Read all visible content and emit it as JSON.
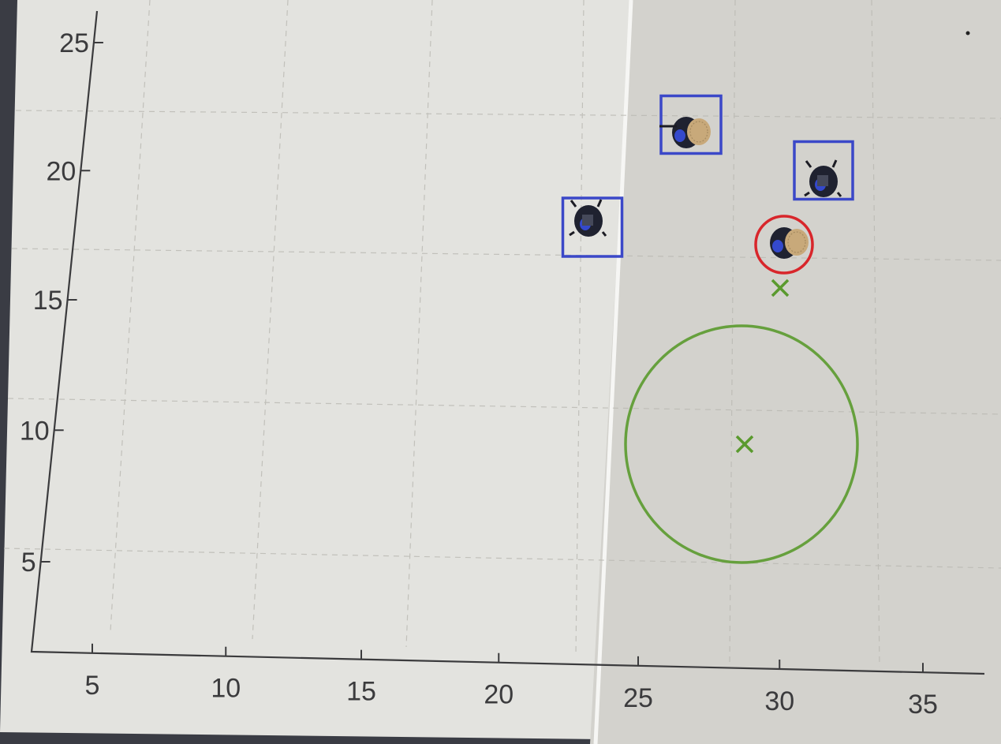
{
  "chart_data": {
    "type": "scatter",
    "title": "",
    "xlabel": "",
    "ylabel": "",
    "xlim": [
      2.5,
      39
    ],
    "ylim": [
      1.5,
      26.5
    ],
    "grid": false,
    "x_ticks": [
      "5",
      "10",
      "15",
      "20",
      "25",
      "30",
      "35"
    ],
    "y_ticks": [
      "5",
      "10",
      "15",
      "20",
      "25"
    ],
    "series": [
      {
        "marker": "blue-square",
        "values": [
          {
            "x": 25.0,
            "y": 17.8
          },
          {
            "x": 28.3,
            "y": 21.9
          },
          {
            "x": 33.5,
            "y": 20.0
          }
        ]
      },
      {
        "marker": "red-circle",
        "values": [
          {
            "x": 31.3,
            "y": 16.6
          }
        ]
      },
      {
        "marker": "green-cross",
        "values": [
          {
            "x": 31.8,
            "y": 15.0
          },
          {
            "x": 30.3,
            "y": 9.3
          }
        ]
      }
    ],
    "target_circle": {
      "cx": 30.3,
      "cy": 9.3,
      "r": 4.5
    },
    "colors": {
      "blue_marker": "#3b48c8",
      "red_marker": "#d8262b",
      "green_marker": "#5a9a2e",
      "sheet_light": "#e4e4e0",
      "sheet_shaded": "#d4d3ce",
      "axis": "#3b3b3d"
    }
  },
  "scene": {
    "objects": [
      "robot",
      "robot",
      "robot",
      "robot"
    ]
  }
}
